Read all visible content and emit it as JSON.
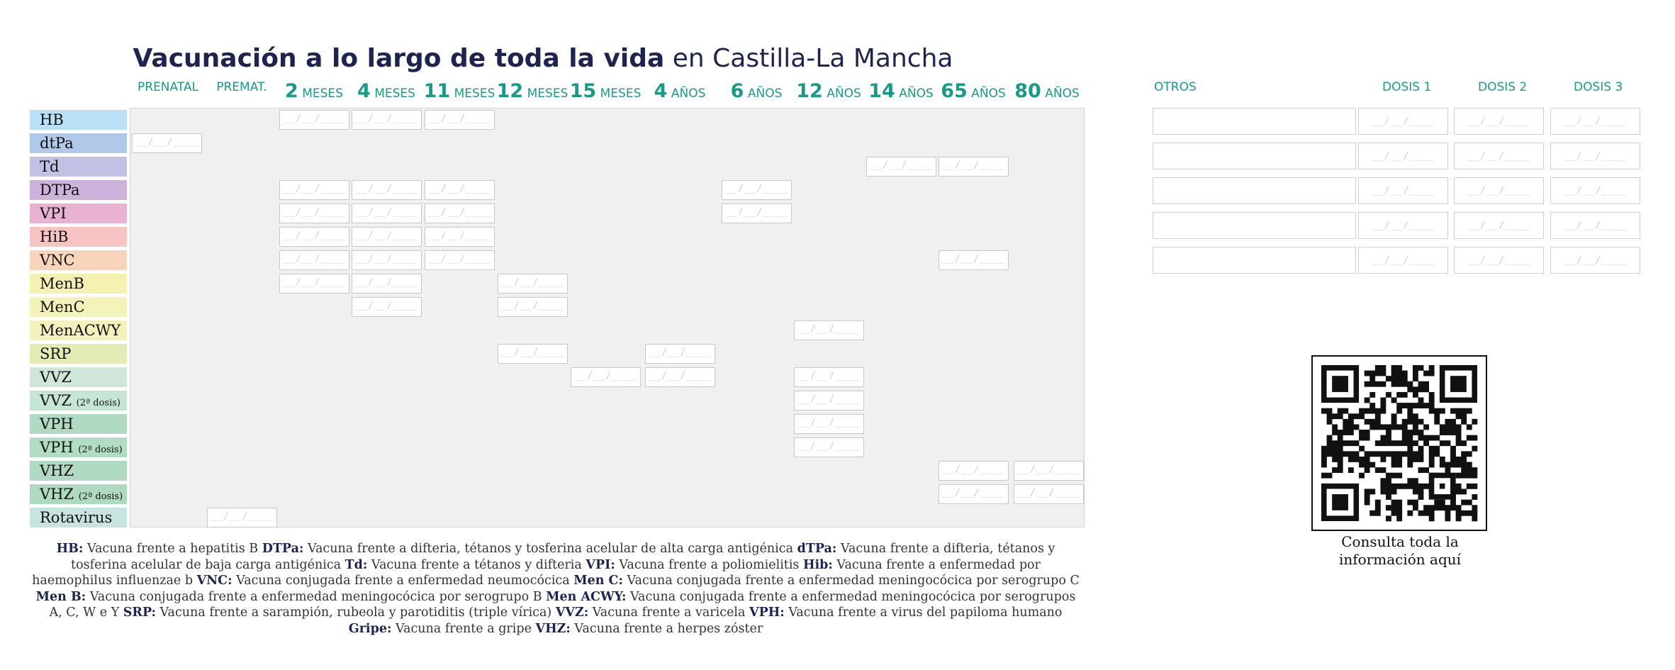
{
  "title": {
    "bold": "Vacunación a lo largo de toda la vida",
    "rest": " en Castilla-La Mancha"
  },
  "ages": [
    {
      "num": "",
      "unit": "PRENATAL"
    },
    {
      "num": "",
      "unit": "PREMAT."
    },
    {
      "num": "2",
      "unit": " MESES"
    },
    {
      "num": "4",
      "unit": " MESES"
    },
    {
      "num": "11",
      "unit": " MESES"
    },
    {
      "num": "12",
      "unit": " MESES"
    },
    {
      "num": "15",
      "unit": " MESES"
    },
    {
      "num": "4",
      "unit": " AÑOS"
    },
    {
      "num": "6",
      "unit": " AÑOS"
    },
    {
      "num": "12",
      "unit": " AÑOS"
    },
    {
      "num": "14",
      "unit": " AÑOS"
    },
    {
      "num": "65",
      "unit": " AÑOS"
    },
    {
      "num": "80",
      "unit": " AÑOS"
    }
  ],
  "vaccines": [
    {
      "name": "HB",
      "note": "",
      "color": "#b9e0f4",
      "cells": [
        2,
        3,
        4
      ]
    },
    {
      "name": "dtPa",
      "note": "",
      "color": "#b1c9e8",
      "cells": [
        0
      ]
    },
    {
      "name": "Td",
      "note": "",
      "color": "#c2c0e3",
      "cells": [
        10,
        11
      ]
    },
    {
      "name": "DTPa",
      "note": "",
      "color": "#cdb2db",
      "cells": [
        2,
        3,
        4,
        8
      ]
    },
    {
      "name": "VPI",
      "note": "",
      "color": "#e9b2d2",
      "cells": [
        2,
        3,
        4,
        8
      ]
    },
    {
      "name": "HiB",
      "note": "",
      "color": "#f7c3c3",
      "cells": [
        2,
        3,
        4
      ]
    },
    {
      "name": "VNC",
      "note": "",
      "color": "#f8d5ba",
      "cells": [
        2,
        3,
        4,
        11
      ]
    },
    {
      "name": "MenB",
      "note": "",
      "color": "#f5f1b1",
      "cells": [
        2,
        3,
        5
      ]
    },
    {
      "name": "MenC",
      "note": "",
      "color": "#f4f3b9",
      "cells": [
        3,
        5
      ]
    },
    {
      "name": "MenACWY",
      "note": "",
      "color": "#f3f2bd",
      "cells": [
        9
      ]
    },
    {
      "name": "SRP",
      "note": "",
      "color": "#e4ebb5",
      "cells": [
        5,
        7
      ]
    },
    {
      "name": "VVZ",
      "note": "",
      "color": "#cfe6d9",
      "cells": [
        6,
        7,
        9
      ]
    },
    {
      "name": "VVZ",
      "note": "(2ª dosis)",
      "color": "#c7e5d5",
      "cells": [
        9
      ]
    },
    {
      "name": "VPH",
      "note": "",
      "color": "#b0dbc2",
      "cells": [
        9
      ]
    },
    {
      "name": "VPH",
      "note": "(2ª dosis)",
      "color": "#b2dcc4",
      "cells": [
        9
      ]
    },
    {
      "name": "VHZ",
      "note": "",
      "color": "#afd9c1",
      "cells": [
        11,
        12
      ]
    },
    {
      "name": "VHZ",
      "note": "(2ª dosis)",
      "color": "#afd9c1",
      "cells": [
        11,
        12
      ]
    },
    {
      "name": "Rotavirus",
      "note": "",
      "color": "#c7e4e1",
      "cells": [
        1
      ]
    }
  ],
  "date_placeholder": "__/__/____",
  "others": {
    "header": "OTROS",
    "dose_headers": [
      "DOSIS 1",
      "DOSIS 2",
      "DOSIS 3"
    ],
    "row_count": 5
  },
  "legend": [
    {
      "abbr": "HB:",
      "text": " Vacuna frente a hepatitis B  "
    },
    {
      "abbr": "DTPa:",
      "text": " Vacuna frente a difteria, tétanos y tosferina acelular de alta carga antigénica "
    },
    {
      "abbr": "dTPa:",
      "text": " Vacuna frente a difteria, tétanos y tosferina acelular de baja carga antigénica "
    },
    {
      "abbr": "Td:",
      "text": " Vacuna frente a tétanos y difteria "
    },
    {
      "abbr": "VPI:",
      "text": " Vacuna frente a poliomielitis "
    },
    {
      "abbr": "Hib:",
      "text": " Vacuna frente a enfermedad por haemophilus influenzae b  "
    },
    {
      "abbr": "VNC:",
      "text": " Vacuna conjugada frente a enfermedad neumocócica  "
    },
    {
      "abbr": "Men C:",
      "text": " Vacuna conjugada frente a enfermedad meningocócica por serogrupo C  "
    },
    {
      "abbr": "Men B:",
      "text": " Vacuna conjugada frente a enfermedad meningocócica por serogrupo B "
    },
    {
      "abbr": "Men ACWY:",
      "text": " Vacuna conjugada frente a enfermedad meningocócica por serogrupos A, C, W e Y "
    },
    {
      "abbr": "SRP:",
      "text": " Vacuna frente a sarampión, rubeola y parotiditis (triple vírica)  "
    },
    {
      "abbr": "VVZ:",
      "text": " Vacuna frente a varicela "
    },
    {
      "abbr": "VPH:",
      "text": " Vacuna frente a virus del papiloma humano "
    },
    {
      "abbr": "Gripe:",
      "text": " Vacuna frente a gripe  "
    },
    {
      "abbr": "VHZ:",
      "text": " Vacuna frente a herpes zóster"
    }
  ],
  "qr_caption": "Consulta toda la información aquí"
}
